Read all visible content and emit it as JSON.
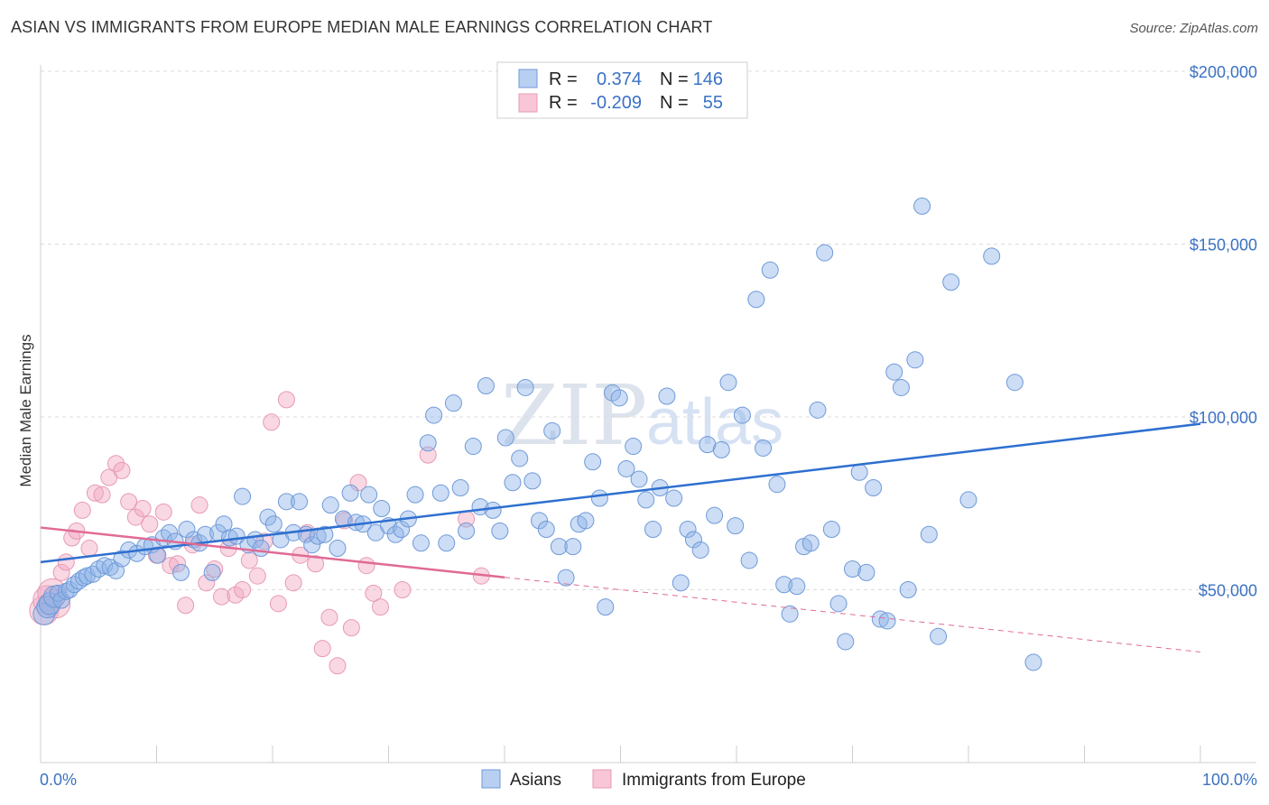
{
  "header": {
    "title": "ASIAN VS IMMIGRANTS FROM EUROPE MEDIAN MALE EARNINGS CORRELATION CHART",
    "source": "Source: ZipAtlas.com"
  },
  "watermark": {
    "zip": "ZIP",
    "atlas": "atlas"
  },
  "colors": {
    "asians": "#8fb3e8",
    "asians_line": "#2e6fd0",
    "europe": "#f2a8c0",
    "europe_line": "#e06a95",
    "axis_text": "#3b72c4",
    "grid": "#d9d9d9"
  },
  "legend": {
    "rows": [
      {
        "r_label": "R =",
        "r_value": "0.374",
        "n_label": "N =",
        "n_value": "146"
      },
      {
        "r_label": "R =",
        "r_value": "-0.209",
        "n_label": "N =",
        "n_value": "55"
      }
    ]
  },
  "bottom_legend": {
    "asians": "Asians",
    "europe": "Immigrants from Europe"
  },
  "chart_data": {
    "type": "scatter",
    "title": "ASIAN VS IMMIGRANTS FROM EUROPE MEDIAN MALE EARNINGS CORRELATION CHART",
    "xlabel": "",
    "ylabel": "Median Male Earnings",
    "xlim": [
      0,
      100
    ],
    "ylim": [
      0,
      210000
    ],
    "x_tick_labels": [
      "0.0%",
      "100.0%"
    ],
    "y_ticks": [
      50000,
      100000,
      150000,
      200000
    ],
    "y_tick_labels": [
      "$50,000",
      "$100,000",
      "$150,000",
      "$200,000"
    ],
    "series": [
      {
        "name": "Asians",
        "R": 0.374,
        "N": 146,
        "trend": {
          "x": [
            0,
            100
          ],
          "y": [
            58000,
            98000
          ],
          "dashed_from": null
        },
        "points": [
          [
            0.3,
            43000
          ],
          [
            0.6,
            45000
          ],
          [
            0.8,
            46000
          ],
          [
            1.2,
            48000
          ],
          [
            1.5,
            49000
          ],
          [
            1.8,
            47000
          ],
          [
            2.2,
            49500
          ],
          [
            2.5,
            50000
          ],
          [
            2.9,
            51500
          ],
          [
            3.3,
            52500
          ],
          [
            3.7,
            53500
          ],
          [
            4.0,
            54000
          ],
          [
            4.5,
            54500
          ],
          [
            5.0,
            56000
          ],
          [
            5.5,
            57000
          ],
          [
            6.0,
            56500
          ],
          [
            6.5,
            55500
          ],
          [
            7.0,
            59000
          ],
          [
            7.6,
            61500
          ],
          [
            8.3,
            60500
          ],
          [
            9.0,
            62500
          ],
          [
            9.6,
            63000
          ],
          [
            10.1,
            60000
          ],
          [
            10.6,
            65000
          ],
          [
            11.1,
            66500
          ],
          [
            11.6,
            64000
          ],
          [
            12.1,
            55000
          ],
          [
            12.6,
            67500
          ],
          [
            13.2,
            64500
          ],
          [
            13.7,
            63500
          ],
          [
            14.2,
            66000
          ],
          [
            14.8,
            55000
          ],
          [
            15.3,
            66500
          ],
          [
            15.8,
            69000
          ],
          [
            16.3,
            65000
          ],
          [
            16.9,
            65500
          ],
          [
            17.4,
            77000
          ],
          [
            17.9,
            63000
          ],
          [
            18.5,
            64500
          ],
          [
            19.0,
            62000
          ],
          [
            19.6,
            71000
          ],
          [
            20.1,
            69000
          ],
          [
            20.7,
            64500
          ],
          [
            21.2,
            75500
          ],
          [
            21.8,
            66500
          ],
          [
            22.3,
            75500
          ],
          [
            22.9,
            66000
          ],
          [
            23.4,
            63000
          ],
          [
            23.9,
            65500
          ],
          [
            24.5,
            66000
          ],
          [
            25.0,
            74500
          ],
          [
            25.6,
            62000
          ],
          [
            26.1,
            70500
          ],
          [
            26.7,
            78000
          ],
          [
            27.2,
            69500
          ],
          [
            27.8,
            69000
          ],
          [
            28.3,
            77500
          ],
          [
            28.9,
            66500
          ],
          [
            29.4,
            73500
          ],
          [
            30.0,
            68500
          ],
          [
            30.6,
            66000
          ],
          [
            31.1,
            67500
          ],
          [
            31.7,
            70500
          ],
          [
            32.3,
            77500
          ],
          [
            32.8,
            63500
          ],
          [
            33.4,
            92500
          ],
          [
            33.9,
            100500
          ],
          [
            34.5,
            78000
          ],
          [
            35.0,
            63500
          ],
          [
            35.6,
            104000
          ],
          [
            36.2,
            79500
          ],
          [
            36.7,
            67000
          ],
          [
            37.3,
            91500
          ],
          [
            37.9,
            74000
          ],
          [
            38.4,
            109000
          ],
          [
            39.0,
            73000
          ],
          [
            39.6,
            67000
          ],
          [
            40.1,
            94000
          ],
          [
            40.7,
            81000
          ],
          [
            41.3,
            88000
          ],
          [
            41.8,
            108500
          ],
          [
            42.4,
            81500
          ],
          [
            43.0,
            70000
          ],
          [
            43.6,
            67500
          ],
          [
            44.1,
            96000
          ],
          [
            44.7,
            62500
          ],
          [
            45.3,
            53500
          ],
          [
            45.9,
            62500
          ],
          [
            46.4,
            69000
          ],
          [
            47.0,
            70000
          ],
          [
            47.6,
            87000
          ],
          [
            48.2,
            76500
          ],
          [
            48.7,
            45000
          ],
          [
            49.3,
            107000
          ],
          [
            49.9,
            105500
          ],
          [
            50.5,
            85000
          ],
          [
            51.1,
            91500
          ],
          [
            51.6,
            82000
          ],
          [
            52.2,
            76000
          ],
          [
            52.8,
            67500
          ],
          [
            53.4,
            79500
          ],
          [
            54.0,
            106000
          ],
          [
            54.6,
            76500
          ],
          [
            55.2,
            52000
          ],
          [
            55.8,
            67500
          ],
          [
            56.3,
            64500
          ],
          [
            56.9,
            61500
          ],
          [
            57.5,
            92000
          ],
          [
            58.1,
            71500
          ],
          [
            58.7,
            90500
          ],
          [
            59.3,
            110000
          ],
          [
            59.9,
            68500
          ],
          [
            60.5,
            100500
          ],
          [
            61.1,
            58500
          ],
          [
            61.7,
            134000
          ],
          [
            62.3,
            91000
          ],
          [
            62.9,
            142500
          ],
          [
            63.5,
            80500
          ],
          [
            64.1,
            51500
          ],
          [
            64.6,
            43000
          ],
          [
            65.2,
            51000
          ],
          [
            65.8,
            62500
          ],
          [
            66.4,
            63500
          ],
          [
            67.0,
            102000
          ],
          [
            67.6,
            147500
          ],
          [
            68.2,
            67500
          ],
          [
            68.8,
            46000
          ],
          [
            69.4,
            35000
          ],
          [
            70.0,
            56000
          ],
          [
            70.6,
            84000
          ],
          [
            71.2,
            55000
          ],
          [
            71.8,
            79500
          ],
          [
            72.4,
            41500
          ],
          [
            73.0,
            41000
          ],
          [
            73.6,
            113000
          ],
          [
            74.2,
            108500
          ],
          [
            74.8,
            50000
          ],
          [
            75.4,
            116500
          ],
          [
            76.0,
            161000
          ],
          [
            76.6,
            66000
          ],
          [
            77.4,
            36500
          ],
          [
            78.5,
            139000
          ],
          [
            80.0,
            76000
          ],
          [
            82.0,
            146500
          ],
          [
            84.0,
            110000
          ],
          [
            85.6,
            29000
          ]
        ]
      },
      {
        "name": "Immigrants from Europe",
        "R": -0.209,
        "N": 55,
        "trend": {
          "x": [
            0,
            100
          ],
          "y": [
            68000,
            32000
          ],
          "dashed_from": 40
        },
        "points": [
          [
            0.3,
            44000
          ],
          [
            0.6,
            47000
          ],
          [
            1.0,
            49000
          ],
          [
            1.3,
            46000
          ],
          [
            1.8,
            55000
          ],
          [
            2.2,
            58000
          ],
          [
            2.7,
            65000
          ],
          [
            3.1,
            67000
          ],
          [
            3.6,
            73000
          ],
          [
            4.2,
            62000
          ],
          [
            4.7,
            78000
          ],
          [
            5.3,
            77500
          ],
          [
            5.9,
            82500
          ],
          [
            6.5,
            86500
          ],
          [
            7.0,
            84500
          ],
          [
            7.6,
            75500
          ],
          [
            8.2,
            71000
          ],
          [
            8.8,
            73500
          ],
          [
            9.4,
            69000
          ],
          [
            10.0,
            60000
          ],
          [
            10.6,
            72500
          ],
          [
            11.2,
            57000
          ],
          [
            11.8,
            57500
          ],
          [
            12.5,
            45500
          ],
          [
            13.1,
            63000
          ],
          [
            13.7,
            74500
          ],
          [
            14.3,
            52000
          ],
          [
            15.0,
            56000
          ],
          [
            15.6,
            48000
          ],
          [
            16.2,
            62000
          ],
          [
            16.8,
            48500
          ],
          [
            17.4,
            50000
          ],
          [
            18.0,
            58500
          ],
          [
            18.7,
            54000
          ],
          [
            19.3,
            64000
          ],
          [
            19.9,
            98500
          ],
          [
            20.5,
            46000
          ],
          [
            21.2,
            105000
          ],
          [
            21.8,
            52000
          ],
          [
            22.4,
            60000
          ],
          [
            23.0,
            66500
          ],
          [
            23.7,
            57500
          ],
          [
            24.3,
            33000
          ],
          [
            24.9,
            42000
          ],
          [
            25.6,
            28000
          ],
          [
            26.2,
            70000
          ],
          [
            26.8,
            39000
          ],
          [
            27.4,
            81000
          ],
          [
            28.1,
            57000
          ],
          [
            28.7,
            49000
          ],
          [
            29.3,
            45000
          ],
          [
            31.2,
            50000
          ],
          [
            33.4,
            89000
          ],
          [
            36.7,
            70500
          ],
          [
            38.0,
            54000
          ]
        ]
      }
    ]
  }
}
